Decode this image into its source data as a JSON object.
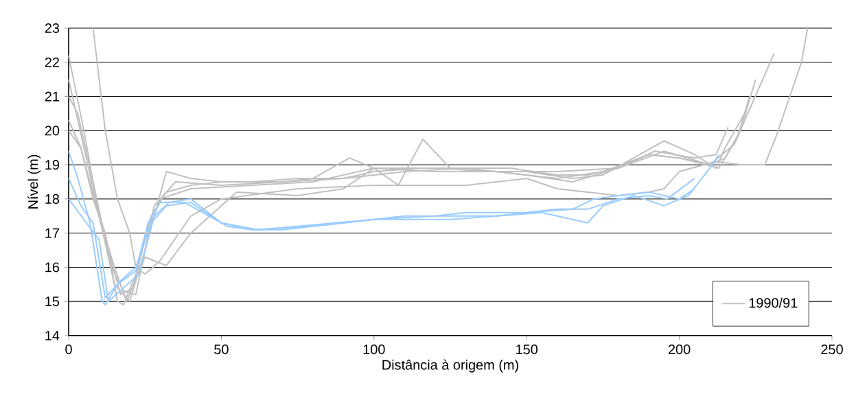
{
  "chart_data": {
    "type": "line",
    "xlabel": "Distância à origem (m)",
    "ylabel": "Nível (m)",
    "xlim": [
      0,
      250
    ],
    "xticks": [
      0,
      50,
      100,
      150,
      200,
      250
    ],
    "ylim": [
      14,
      23
    ],
    "yticks": [
      14,
      15,
      16,
      17,
      18,
      19,
      20,
      21,
      22,
      23
    ],
    "grid": "y",
    "legend": "bottom right",
    "marker": "none",
    "line_style": "solid",
    "series": [
      {
        "name": "1990/91",
        "color": "#c0c0c0",
        "x": [
          0,
          4,
          8,
          12,
          16,
          18,
          22,
          27,
          32,
          40,
          50,
          60,
          75,
          90,
          100,
          115,
          130,
          145,
          160,
          170,
          180,
          190,
          200,
          210,
          215,
          220,
          225
        ],
        "values": [
          20.0,
          19.5,
          18.0,
          17.0,
          15.0,
          14.9,
          15.8,
          17.5,
          18.2,
          18.4,
          18.5,
          18.5,
          18.6,
          18.6,
          18.8,
          18.9,
          18.9,
          18.9,
          18.7,
          18.7,
          18.9,
          19.3,
          19.2,
          19.0,
          19.2,
          20.0,
          21.5
        ]
      },
      {
        "color": "#c0c0c0",
        "x": [
          8,
          12,
          16,
          20,
          22,
          25,
          30,
          40,
          50,
          75,
          100,
          130,
          150,
          160,
          170,
          180,
          190,
          195,
          200,
          212,
          220,
          228,
          232,
          240,
          242
        ],
        "values": [
          23.0,
          20.0,
          18.0,
          17.0,
          16.0,
          15.8,
          16.2,
          17.5,
          18.0,
          18.3,
          18.4,
          18.4,
          18.6,
          18.3,
          18.2,
          18.1,
          18.2,
          18.3,
          18.8,
          19.1,
          19.0,
          19.0,
          19.9,
          22.0,
          23.0
        ]
      },
      {
        "color": "#c0c0c0",
        "x": [
          0,
          5,
          10,
          15,
          20,
          25,
          32,
          40,
          50,
          70,
          80,
          92,
          100,
          108,
          116,
          125,
          135,
          150,
          165,
          175,
          185,
          195,
          205,
          212,
          215,
          222
        ],
        "values": [
          21.5,
          19.5,
          17.5,
          15.5,
          15.0,
          16.5,
          18.8,
          18.6,
          18.5,
          18.5,
          18.6,
          19.2,
          18.9,
          18.4,
          19.75,
          18.9,
          18.8,
          18.8,
          18.6,
          18.7,
          19.2,
          19.7,
          19.3,
          18.9,
          19.5,
          20.6
        ]
      },
      {
        "color": "#c0c0c0",
        "x": [
          0,
          5,
          10,
          15,
          19,
          25,
          32,
          40,
          55,
          75,
          90,
          100,
          120,
          140,
          160,
          180,
          195,
          210,
          218,
          231
        ],
        "values": [
          22.2,
          20.0,
          17.5,
          16.0,
          15.0,
          16.3,
          16.05,
          17.0,
          18.2,
          18.1,
          18.3,
          18.9,
          18.9,
          18.8,
          18.8,
          18.9,
          19.4,
          19.0,
          19.6,
          22.25
        ]
      },
      {
        "color": "#c0c0c0",
        "x": [
          0,
          4,
          9,
          13,
          17,
          21,
          25,
          30,
          40,
          60,
          80,
          100,
          120,
          140,
          160,
          175,
          190,
          200,
          213,
          219,
          223
        ],
        "values": [
          20.3,
          19.5,
          17.8,
          16.5,
          15.2,
          15.4,
          16.8,
          18.0,
          18.3,
          18.4,
          18.5,
          18.9,
          18.8,
          18.8,
          18.6,
          18.8,
          19.3,
          19.2,
          18.9,
          19.8,
          21.0
        ]
      },
      {
        "color": "#c0c0c0",
        "x": [
          0,
          3,
          8,
          14,
          18,
          22,
          28,
          35,
          50,
          70,
          90,
          110,
          130,
          150,
          165,
          180,
          192,
          205,
          212,
          216
        ],
        "values": [
          21.0,
          20.5,
          18.5,
          16.0,
          15.3,
          15.2,
          17.8,
          18.5,
          18.4,
          18.5,
          18.6,
          18.8,
          18.9,
          18.7,
          18.5,
          18.9,
          19.4,
          19.2,
          19.3,
          20.1
        ]
      },
      {
        "color": "#99ccff",
        "x": [
          0,
          3,
          7,
          11,
          12,
          16,
          22,
          26,
          30,
          38,
          46,
          52,
          60,
          70,
          80,
          100,
          110,
          128,
          140,
          150,
          160,
          170,
          180,
          190,
          196,
          205
        ],
        "values": [
          19.4,
          18.6,
          17.3,
          15.0,
          14.9,
          15.5,
          15.9,
          17.3,
          17.9,
          17.9,
          17.5,
          17.2,
          17.1,
          17.1,
          17.2,
          17.4,
          17.5,
          17.5,
          17.5,
          17.6,
          17.7,
          17.7,
          18.0,
          18.1,
          18.0,
          18.6
        ]
      },
      {
        "color": "#99ccff",
        "x": [
          0,
          4,
          8,
          12,
          17,
          22,
          27,
          32,
          40,
          50,
          62,
          75,
          100,
          125,
          140,
          155,
          170,
          175,
          185,
          195,
          203,
          210,
          213
        ],
        "values": [
          18.6,
          17.8,
          17.3,
          15.1,
          15.6,
          16.0,
          17.3,
          17.8,
          17.9,
          17.3,
          17.1,
          17.2,
          17.4,
          17.4,
          17.5,
          17.6,
          17.3,
          17.8,
          18.1,
          17.8,
          18.1,
          18.9,
          19.3
        ]
      },
      {
        "color": "#99ccff",
        "x": [
          0,
          5,
          10,
          13,
          18,
          23,
          28,
          33,
          40,
          50,
          60,
          80,
          100,
          120,
          130,
          150,
          165,
          172,
          180,
          190,
          200,
          205
        ],
        "values": [
          18.0,
          17.4,
          16.8,
          15.0,
          15.4,
          15.8,
          17.5,
          17.9,
          18.0,
          17.3,
          17.1,
          17.2,
          17.4,
          17.5,
          17.6,
          17.6,
          17.7,
          18.0,
          18.1,
          18.2,
          18.0,
          18.3
        ]
      }
    ]
  }
}
